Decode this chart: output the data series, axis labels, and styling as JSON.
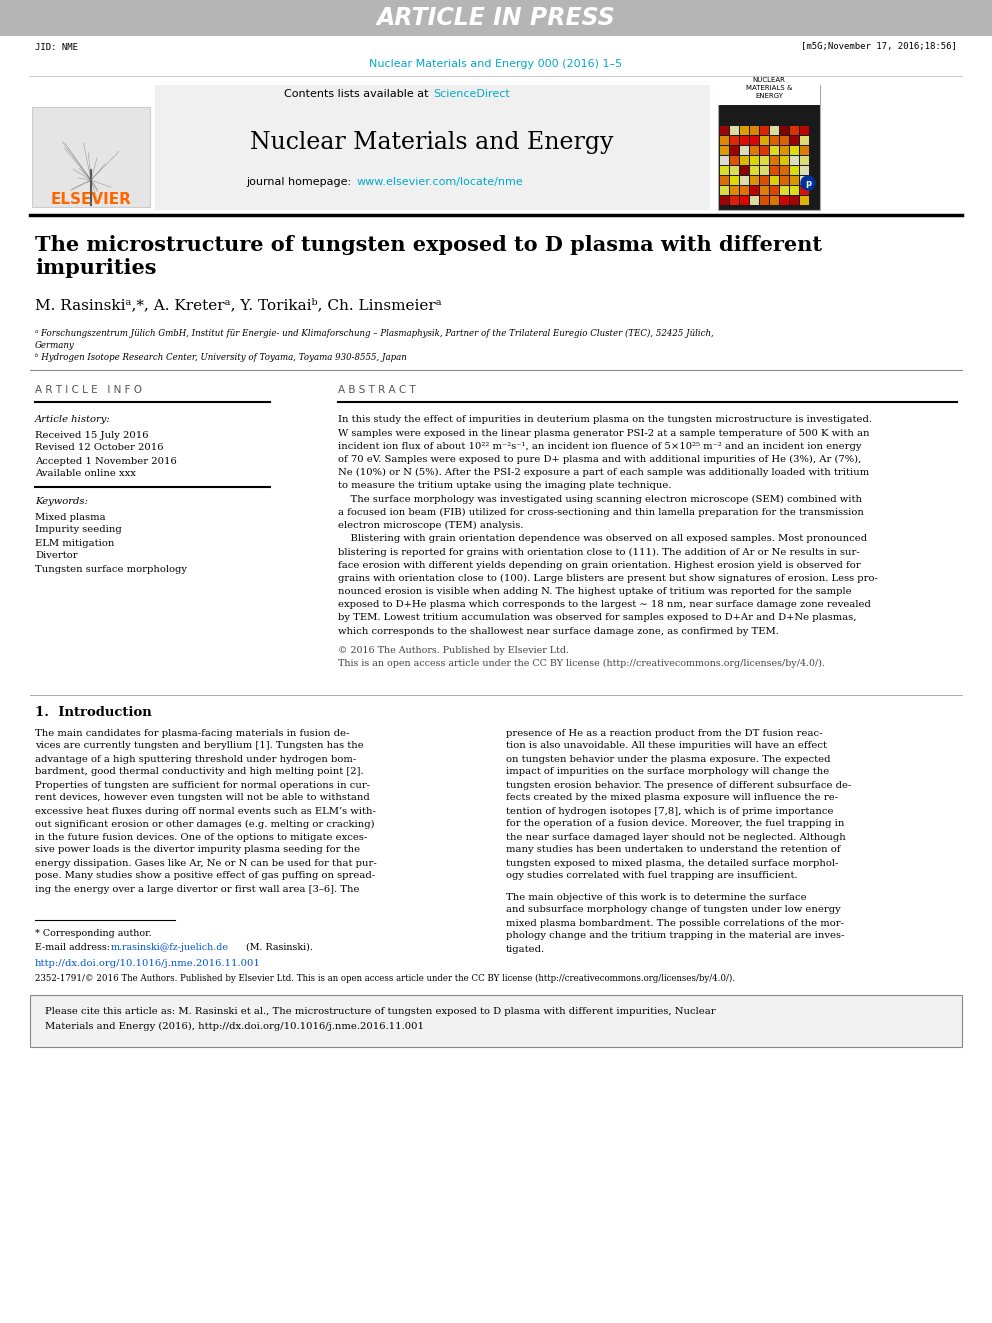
{
  "title_bar_text": "ARTICLE IN PRESS",
  "title_bar_color": "#b5b5b5",
  "jid_text": "JID: NME",
  "date_text": "[m5G;November 17, 2016;18:56]",
  "journal_citation": "Nuclear Materials and Energy 000 (2016) 1–5",
  "journal_citation_color": "#00aacc",
  "contents_text": "Contents lists available at ",
  "sciencedirect_text": "ScienceDirect",
  "sciencedirect_color": "#00aacc",
  "journal_name": "Nuclear Materials and Energy",
  "journal_homepage_text": "journal homepage: ",
  "journal_homepage_url": "www.elsevier.com/locate/nme",
  "journal_homepage_color": "#00aacc",
  "elsevier_color": "#ff6600",
  "article_title_line1": "The microstructure of tungsten exposed to D plasma with different",
  "article_title_line2": "impurities",
  "author_line": "M. Rasinskiᵃ,*, A. Kreterᵃ, Y. Torikaiᵇ, Ch. Linsmeierᵃ",
  "affiliation_a": "ᵃ Forschungszentrum Jülich GmbH, Institut für Energie- und Klimaforschung – Plasmaphysik, Partner of the Trilateral Euregio Cluster (TEC), 52425 Jülich,",
  "affiliation_a2": "Germany",
  "affiliation_b": "ᵇ Hydrogen Isotope Research Center, University of Toyama, Toyama 930-8555, Japan",
  "article_info_header": "A R T I C L E   I N F O",
  "abstract_header": "A B S T R A C T",
  "article_history_label": "Article history:",
  "received": "Received 15 July 2016",
  "revised": "Revised 12 October 2016",
  "accepted": "Accepted 1 November 2016",
  "available": "Available online xxx",
  "keywords_label": "Keywords:",
  "keyword1": "Mixed plasma",
  "keyword2": "Impurity seeding",
  "keyword3": "ELM mitigation",
  "keyword4": "Divertor",
  "keyword5": "Tungsten surface morphology",
  "open_access_line1": "© 2016 The Authors. Published by Elsevier Ltd.",
  "open_access_line2": "This is an open access article under the CC BY license (http://creativecommons.org/licenses/by/4.0/).",
  "section1_header": "1.  Introduction",
  "footnote_star": "* Corresponding author.",
  "footnote_email_pre": "E-mail address: ",
  "footnote_email_link": "m.rasinski@fz-juelich.de",
  "footnote_email_post": " (M. Rasinski).",
  "footnote_email_color": "#0055cc",
  "doi_text": "http://dx.doi.org/10.1016/j.nme.2016.11.001",
  "doi_color": "#0055cc",
  "issn_text": "2352-1791/© 2016 The Authors. Published by Elsevier Ltd. This is an open access article under the CC BY license (http://creativecommons.org/licenses/by/4.0/).",
  "issn_url": "http://creativecommons.org/licenses/by/4.0/",
  "cite_line1": "Please cite this article as: M. Rasinski et al., The microstructure of tungsten exposed to D plasma with different impurities, Nuclear",
  "cite_line2": "Materials and Energy (2016), http://dx.doi.org/10.1016/j.nme.2016.11.001",
  "cite_url_color": "#0055cc",
  "background_color": "#ffffff",
  "text_color": "#000000",
  "abstract_lines": [
    "In this study the effect of impurities in deuterium plasma on the tungsten microstructure is investigated.",
    "W samples were exposed in the linear plasma generator PSI-2 at a sample temperature of 500 K with an",
    "incident ion flux of about 10²² m⁻²s⁻¹, an incident ion fluence of 5×10²⁵ m⁻² and an incident ion energy",
    "of 70 eV. Samples were exposed to pure D+ plasma and with additional impurities of He (3%), Ar (7%),",
    "Ne (10%) or N (5%). After the PSI-2 exposure a part of each sample was additionally loaded with tritium",
    "to measure the tritium uptake using the imaging plate technique.",
    "    The surface morphology was investigated using scanning electron microscope (SEM) combined with",
    "a focused ion beam (FIB) utilized for cross-sectioning and thin lamella preparation for the transmission",
    "electron microscope (TEM) analysis.",
    "    Blistering with grain orientation dependence was observed on all exposed samples. Most pronounced",
    "blistering is reported for grains with orientation close to (111). The addition of Ar or Ne results in sur-",
    "face erosion with different yields depending on grain orientation. Highest erosion yield is observed for",
    "grains with orientation close to (100). Large blisters are present but show signatures of erosion. Less pro-",
    "nounced erosion is visible when adding N. The highest uptake of tritium was reported for the sample",
    "exposed to D+He plasma which corresponds to the largest ∼ 18 nm, near surface damage zone revealed",
    "by TEM. Lowest tritium accumulation was observed for samples exposed to D+Ar and D+Ne plasmas,",
    "which corresponds to the shallowest near surface damage zone, as confirmed by TEM."
  ],
  "intro_col1": [
    "The main candidates for plasma-facing materials in fusion de-",
    "vices are currently tungsten and beryllium [1]. Tungsten has the",
    "advantage of a high sputtering threshold under hydrogen bom-",
    "bardment, good thermal conductivity and high melting point [2].",
    "Properties of tungsten are sufficient for normal operations in cur-",
    "rent devices, however even tungsten will not be able to withstand",
    "excessive heat fluxes during off normal events such as ELM’s with-",
    "out significant erosion or other damages (e.g. melting or cracking)",
    "in the future fusion devices. One of the options to mitigate exces-",
    "sive power loads is the divertor impurity plasma seeding for the",
    "energy dissipation. Gases like Ar, Ne or N can be used for that pur-",
    "pose. Many studies show a positive effect of gas puffing on spread-",
    "ing the energy over a large divertor or first wall area [3–6]. The"
  ],
  "intro_col2_p1": [
    "presence of He as a reaction product from the DT fusion reac-",
    "tion is also unavoidable. All these impurities will have an effect",
    "on tungsten behavior under the plasma exposure. The expected",
    "impact of impurities on the surface morphology will change the",
    "tungsten erosion behavior. The presence of different subsurface de-",
    "fects created by the mixed plasma exposure will influence the re-",
    "tention of hydrogen isotopes [7,8], which is of prime importance",
    "for the operation of a fusion device. Moreover, the fuel trapping in",
    "the near surface damaged layer should not be neglected. Although",
    "many studies has been undertaken to understand the retention of",
    "tungsten exposed to mixed plasma, the detailed surface morphol-",
    "ogy studies correlated with fuel trapping are insufficient."
  ],
  "intro_col2_p2": [
    "The main objective of this work is to determine the surface",
    "and subsurface morphology change of tungsten under low energy",
    "mixed plasma bombardment. The possible correlations of the mor-",
    "phology change and the tritium trapping in the material are inves-",
    "tigated."
  ]
}
